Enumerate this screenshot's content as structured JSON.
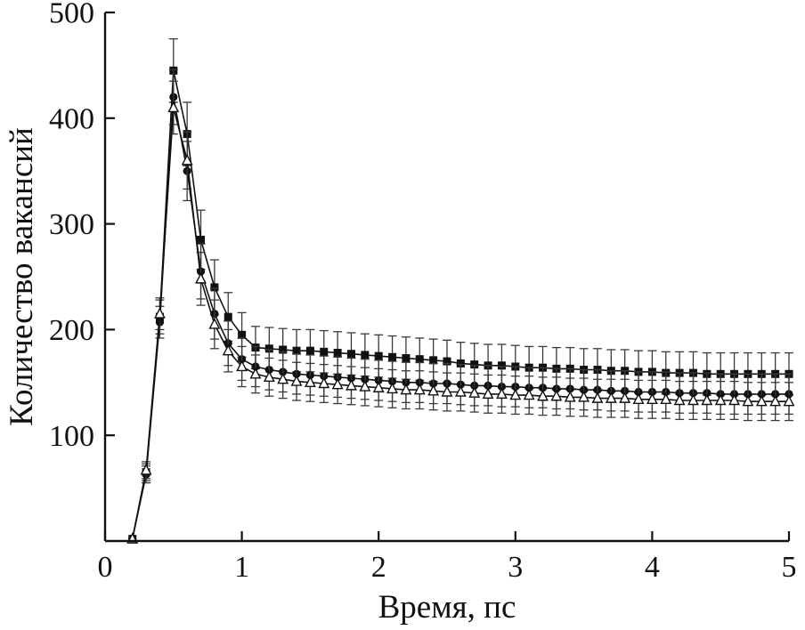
{
  "chart_data": {
    "type": "line",
    "title": "",
    "xlabel": "Время, пс",
    "ylabel": "Количество вакансий",
    "xlim": [
      0,
      5
    ],
    "ylim": [
      0,
      500
    ],
    "xticks": [
      0,
      1,
      2,
      3,
      4,
      5
    ],
    "yticks": [
      100,
      200,
      300,
      400,
      500
    ],
    "grid": false,
    "legend": "none",
    "error_bars": true,
    "axis_color": "#111111",
    "x": [
      0.2,
      0.3,
      0.4,
      0.5,
      0.6,
      0.7,
      0.8,
      0.9,
      1.0,
      1.1,
      1.2,
      1.3,
      1.4,
      1.5,
      1.6,
      1.7,
      1.8,
      1.9,
      2.0,
      2.1,
      2.2,
      2.3,
      2.4,
      2.5,
      2.6,
      2.7,
      2.8,
      2.9,
      3.0,
      3.1,
      3.2,
      3.3,
      3.4,
      3.5,
      3.6,
      3.7,
      3.8,
      3.9,
      4.0,
      4.1,
      4.2,
      4.3,
      4.4,
      4.5,
      4.6,
      4.7,
      4.8,
      4.9,
      5.0
    ],
    "series": [
      {
        "id": "squares",
        "name": "series-filled-squares",
        "marker": "square-filled",
        "color": "#111111",
        "values": [
          2,
          65,
          212,
          445,
          385,
          285,
          240,
          212,
          195,
          183,
          182,
          181,
          180,
          180,
          179,
          178,
          177,
          176,
          175,
          174,
          173,
          172,
          171,
          170,
          168,
          167,
          166,
          166,
          165,
          164,
          164,
          163,
          163,
          162,
          162,
          161,
          161,
          160,
          160,
          159,
          159,
          159,
          158,
          158,
          158,
          158,
          158,
          158,
          158
        ],
        "err": [
          1,
          8,
          16,
          30,
          30,
          28,
          26,
          23,
          21,
          20,
          20,
          20,
          20,
          20,
          20,
          20,
          20,
          20,
          20,
          20,
          20,
          20,
          20,
          20,
          20,
          20,
          20,
          20,
          20,
          20,
          20,
          20,
          20,
          20,
          20,
          20,
          20,
          20,
          20,
          20,
          20,
          20,
          20,
          20,
          20,
          20,
          20,
          20,
          20
        ]
      },
      {
        "id": "circles",
        "name": "series-filled-circles",
        "marker": "circle-filled",
        "color": "#111111",
        "values": [
          2,
          63,
          207,
          420,
          350,
          255,
          215,
          187,
          172,
          165,
          162,
          160,
          158,
          157,
          156,
          155,
          154,
          153,
          152,
          151,
          150,
          150,
          149,
          149,
          148,
          147,
          147,
          146,
          146,
          145,
          145,
          144,
          144,
          143,
          143,
          142,
          142,
          141,
          141,
          141,
          140,
          140,
          140,
          139,
          139,
          139,
          139,
          139,
          139
        ],
        "err": [
          1,
          8,
          15,
          26,
          28,
          26,
          24,
          21,
          20,
          19,
          19,
          19,
          19,
          19,
          19,
          19,
          19,
          19,
          19,
          19,
          19,
          19,
          19,
          19,
          19,
          19,
          19,
          19,
          19,
          19,
          19,
          19,
          19,
          19,
          19,
          19,
          19,
          19,
          19,
          19,
          19,
          19,
          19,
          19,
          19,
          19,
          19,
          19,
          19
        ]
      },
      {
        "id": "triangles",
        "name": "series-open-triangles",
        "marker": "triangle-open",
        "color": "#111111",
        "values": [
          2,
          67,
          215,
          410,
          360,
          248,
          205,
          180,
          165,
          158,
          155,
          153,
          151,
          150,
          149,
          148,
          147,
          146,
          145,
          144,
          143,
          143,
          142,
          141,
          141,
          140,
          139,
          139,
          138,
          138,
          137,
          137,
          136,
          136,
          135,
          135,
          135,
          134,
          134,
          134,
          133,
          133,
          133,
          133,
          133,
          132,
          132,
          132,
          132
        ],
        "err": [
          1,
          8,
          15,
          25,
          27,
          25,
          23,
          20,
          19,
          18,
          18,
          18,
          18,
          18,
          18,
          18,
          18,
          18,
          18,
          18,
          18,
          18,
          18,
          18,
          18,
          18,
          18,
          18,
          18,
          18,
          18,
          18,
          18,
          18,
          18,
          18,
          18,
          18,
          18,
          18,
          18,
          18,
          18,
          18,
          18,
          18,
          18,
          18,
          18
        ]
      }
    ]
  }
}
